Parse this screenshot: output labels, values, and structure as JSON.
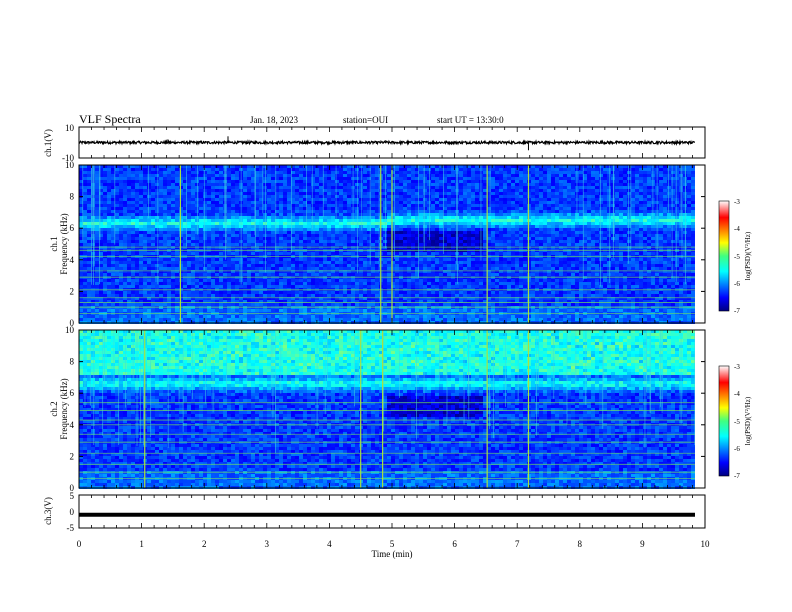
{
  "header": {
    "title": "VLF Spectra",
    "date": "Jan. 18, 2023",
    "station": "station=OUI",
    "start": "start UT = 13:30:0"
  },
  "chart_data": [
    {
      "type": "line",
      "panel": "ch1-waveform",
      "ylabel": "ch.1(V)",
      "ylim": [
        -10,
        10
      ],
      "yticks": [
        "10",
        "-10"
      ],
      "baseline_value": 0,
      "color": "#000000",
      "spikes": [
        {
          "x": 2.38,
          "y": 4
        },
        {
          "x": 7.18,
          "y": -5
        },
        {
          "x": 1.42,
          "y": 2
        },
        {
          "x": 4.9,
          "y": 1.5
        }
      ]
    },
    {
      "type": "heatmap",
      "panel": "ch1-spectrogram",
      "ylabel": "Frequency (kHz)",
      "channel_label": "ch.1",
      "ylim": [
        0,
        10
      ],
      "yticks": [
        "0",
        "2",
        "4",
        "6",
        "8",
        "10"
      ],
      "xlim": [
        0,
        10
      ],
      "colorbar": {
        "label": "log(PSD)(V²/Hz)",
        "ticks": [
          "-3",
          "-4",
          "-5",
          "-6",
          "-7"
        ],
        "range": [
          -7,
          -3
        ]
      },
      "features": {
        "band_center_khz": 6.4,
        "band_center_after_5min_khz": 6.6,
        "strong_vertical_lines_min": [
          4.82,
          6.52,
          7.18,
          5.0,
          1.62
        ],
        "horizontal_lines_khz": [
          0.6,
          1.0,
          1.3,
          1.6,
          2.1,
          2.9,
          3.3,
          4.2,
          4.6,
          4.8
        ]
      }
    },
    {
      "type": "heatmap",
      "panel": "ch2-spectrogram",
      "ylabel": "Frequency (kHz)",
      "channel_label": "ch.2",
      "ylim": [
        0,
        10
      ],
      "yticks": [
        "0",
        "2",
        "4",
        "6",
        "8",
        "10"
      ],
      "xlim": [
        0,
        10
      ],
      "colorbar": {
        "label": "log(PSD)(V²/Hz)",
        "ticks": [
          "-3",
          "-4",
          "-5",
          "-6",
          "-7"
        ],
        "range": [
          -7,
          -3
        ]
      },
      "features": {
        "band_center_khz": 6.7,
        "strong_vertical_lines_min": [
          4.5,
          6.52,
          7.18,
          4.85,
          1.05
        ],
        "horizontal_lines_khz": [
          0.6,
          1.0,
          1.5,
          2.2,
          2.9,
          3.4,
          4.0,
          4.3,
          4.9,
          5.4
        ]
      }
    },
    {
      "type": "line",
      "panel": "ch3-waveform",
      "ylabel": "ch.3(V)",
      "ylim": [
        -5,
        5
      ],
      "yticks": [
        "5",
        "0",
        "-5"
      ],
      "value": -1,
      "color": "#000000"
    }
  ],
  "xaxis": {
    "label": "Time (min)",
    "ticks": [
      "0",
      "1",
      "2",
      "3",
      "4",
      "5",
      "6",
      "7",
      "8",
      "9",
      "10"
    ],
    "xlim": [
      0,
      10
    ],
    "data_end": 9.84
  }
}
